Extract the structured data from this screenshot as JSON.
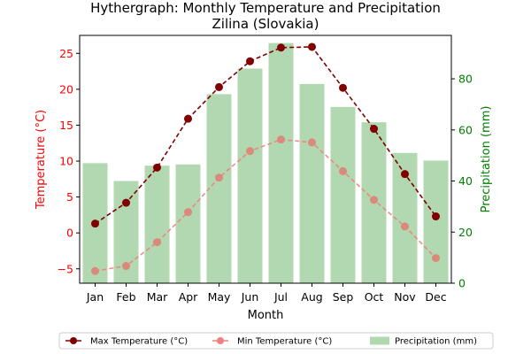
{
  "chart_data": {
    "type": "bar+line",
    "title": "Hythergraph: Monthly Temperature and Precipitation",
    "subtitle": "Zilina (Slovakia)",
    "xlabel": "Month",
    "ylabel_left": "Temperature (°C)",
    "ylabel_right": "Precipitation (mm)",
    "categories": [
      "Jan",
      "Feb",
      "Mar",
      "Apr",
      "May",
      "Jun",
      "Jul",
      "Aug",
      "Sep",
      "Oct",
      "Nov",
      "Dec"
    ],
    "ylim_left": [
      -7,
      27.5
    ],
    "yticks_left": [
      "−5",
      "0",
      "5",
      "10",
      "15",
      "20",
      "25"
    ],
    "ylim_right": [
      0,
      97
    ],
    "yticks_right": [
      "0",
      "20",
      "40",
      "60",
      "80"
    ],
    "grid": false,
    "legend_position": "bottom-center",
    "series": [
      {
        "name": "Max Temperature (°C)",
        "kind": "line",
        "axis": "left",
        "style": "dashed",
        "color": "#800000",
        "values": [
          1.3,
          4.2,
          9.1,
          15.9,
          20.3,
          23.9,
          25.8,
          25.9,
          20.2,
          14.5,
          8.2,
          2.3
        ]
      },
      {
        "name": "Min Temperature (°C)",
        "kind": "line",
        "axis": "left",
        "style": "dashed",
        "color": "#f08080",
        "values": [
          -5.3,
          -4.6,
          -1.3,
          2.9,
          7.7,
          11.4,
          13.0,
          12.6,
          8.6,
          4.6,
          0.9,
          -3.5
        ]
      },
      {
        "name": "Precipitation (mm)",
        "kind": "bar",
        "axis": "right",
        "color": "#b2d8b2",
        "values": [
          47,
          40,
          46,
          46.5,
          74,
          84,
          94,
          78,
          69,
          63,
          51,
          48
        ]
      }
    ]
  }
}
